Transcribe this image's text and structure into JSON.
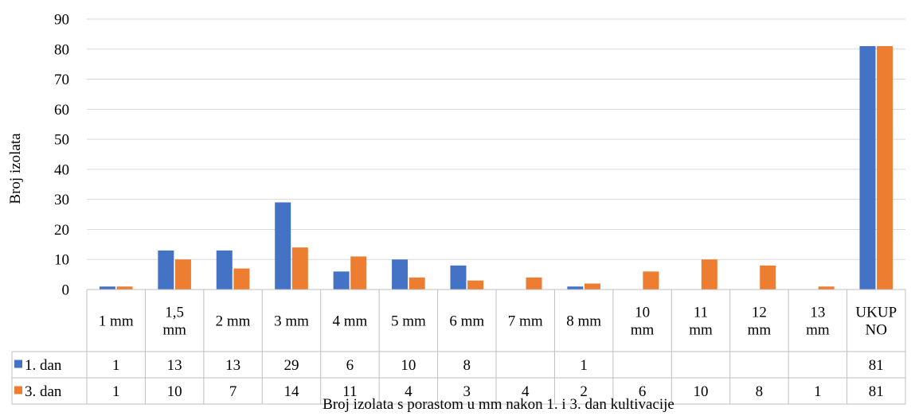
{
  "chart_data": {
    "type": "bar",
    "title": "",
    "xlabel": "Broj izolata s porastom u mm nakon 1. i 3. dan kultivacije",
    "ylabel": "Broj izolata",
    "ylim": [
      0,
      90
    ],
    "yticks": [
      0,
      10,
      20,
      30,
      40,
      50,
      60,
      70,
      80,
      90
    ],
    "grid": true,
    "legend": "data-table-left",
    "categories": [
      [
        "1 mm"
      ],
      [
        "1,5",
        "mm"
      ],
      [
        "2 mm"
      ],
      [
        "3 mm"
      ],
      [
        "4 mm"
      ],
      [
        "5 mm"
      ],
      [
        "6 mm"
      ],
      [
        "7 mm"
      ],
      [
        "8 mm"
      ],
      [
        "10",
        "mm"
      ],
      [
        "11",
        "mm"
      ],
      [
        "12",
        "mm"
      ],
      [
        "13",
        "mm"
      ],
      [
        "UKUP",
        "NO"
      ]
    ],
    "series": [
      {
        "name": "1. dan",
        "color": "#4472c4",
        "values": [
          1,
          13,
          13,
          29,
          6,
          10,
          8,
          null,
          1,
          null,
          null,
          null,
          null,
          81
        ]
      },
      {
        "name": "3. dan",
        "color": "#ed7d31",
        "values": [
          1,
          10,
          7,
          14,
          11,
          4,
          3,
          4,
          2,
          6,
          10,
          8,
          1,
          81
        ]
      }
    ]
  }
}
